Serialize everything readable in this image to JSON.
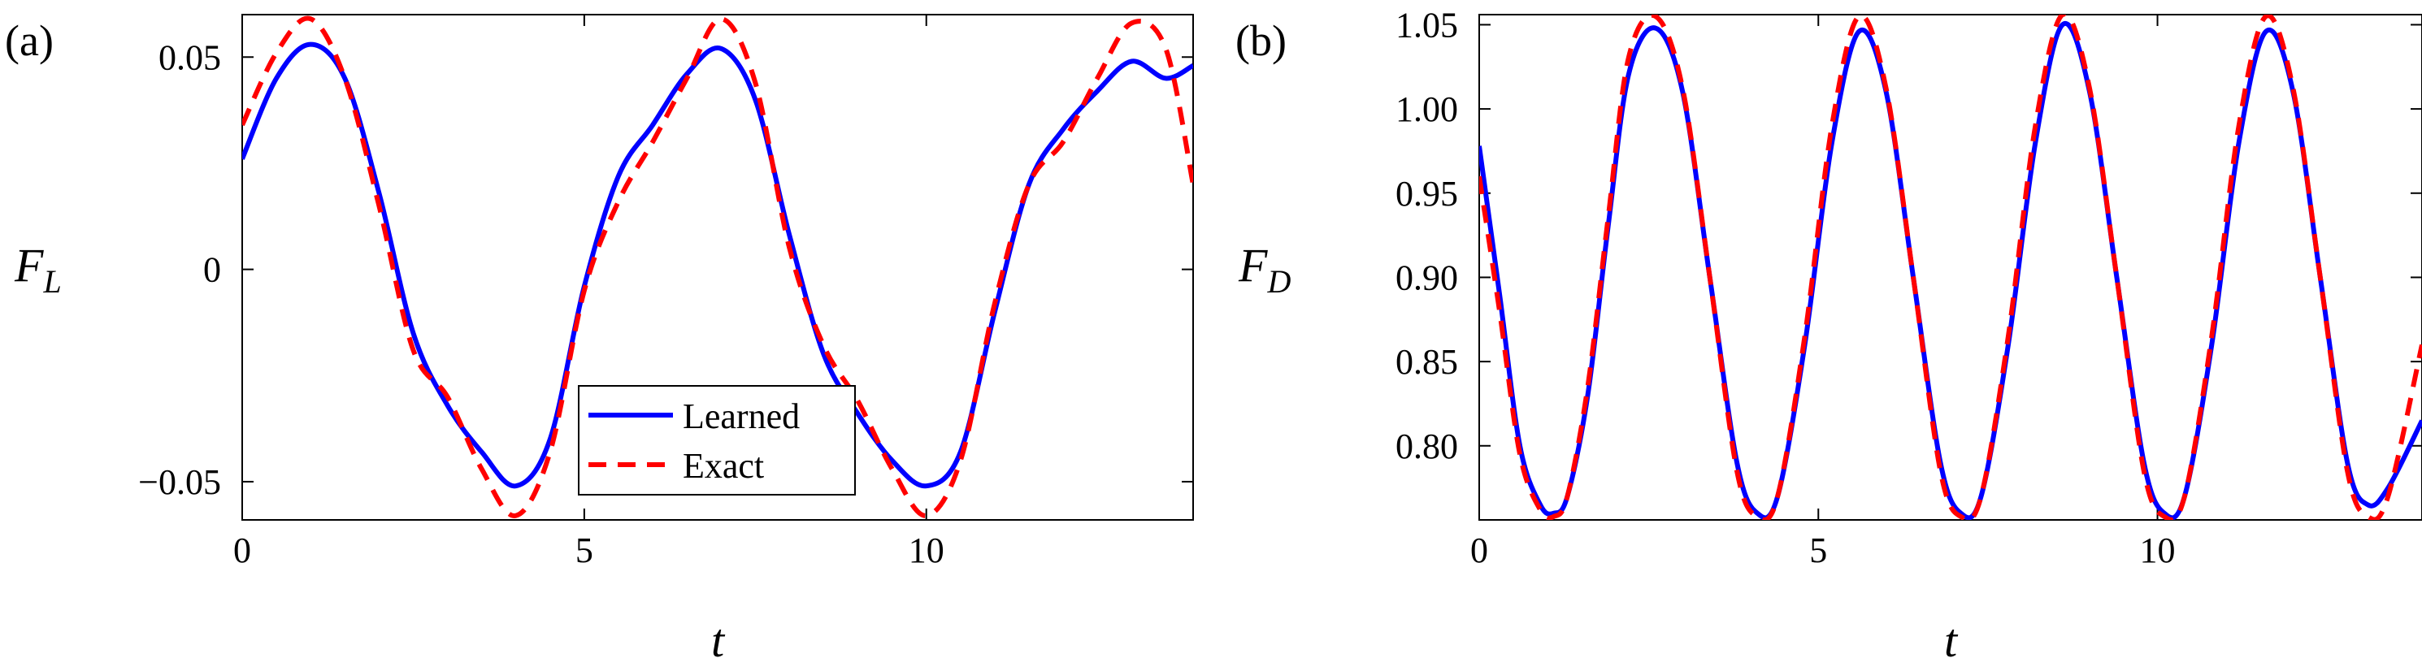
{
  "chart_data": [
    {
      "type": "line",
      "panel_label": "(a)",
      "xlabel": "t",
      "ylabel": "F",
      "ylabel_sub": "L",
      "xlim": [
        0,
        13.9
      ],
      "ylim": [
        -0.059,
        0.06
      ],
      "xticks": [
        0,
        5,
        10
      ],
      "xtick_labels": [
        "0",
        "5",
        "10"
      ],
      "yticks": [
        -0.05,
        0,
        0.05
      ],
      "ytick_labels": [
        "−0.05",
        "0",
        "0.05"
      ],
      "legend": {
        "position": "bottom-center",
        "entries": [
          {
            "label": "Learned",
            "color": "#0000ff",
            "style": "solid"
          },
          {
            "label": "Exact",
            "color": "#ff0000",
            "style": "dashed"
          }
        ]
      },
      "series": [
        {
          "name": "Learned",
          "color": "#0000ff",
          "style": "solid",
          "x": [
            0,
            0.5,
            1.0,
            1.5,
            2.0,
            2.5,
            3.0,
            3.5,
            4.0,
            4.5,
            5.0,
            5.5,
            6.0,
            6.5,
            7.0,
            7.5,
            8.0,
            8.5,
            9.0,
            9.5,
            10.0,
            10.5,
            11.0,
            11.5,
            12.0,
            12.5,
            13.0,
            13.5,
            13.9
          ],
          "y": [
            0.026,
            0.045,
            0.053,
            0.045,
            0.018,
            -0.015,
            -0.032,
            -0.043,
            -0.051,
            -0.04,
            -0.004,
            0.022,
            0.034,
            0.046,
            0.052,
            0.04,
            0.008,
            -0.02,
            -0.034,
            -0.045,
            -0.051,
            -0.043,
            -0.01,
            0.02,
            0.033,
            0.042,
            0.049,
            0.045,
            0.048
          ]
        },
        {
          "name": "Exact",
          "color": "#ff0000",
          "style": "dashed",
          "x": [
            0,
            0.5,
            1.0,
            1.5,
            2.0,
            2.5,
            3.0,
            3.5,
            4.0,
            4.5,
            5.0,
            5.5,
            6.0,
            6.5,
            7.0,
            7.5,
            8.0,
            8.5,
            9.0,
            9.5,
            10.0,
            10.5,
            11.0,
            11.5,
            12.0,
            12.5,
            13.0,
            13.5,
            13.9
          ],
          "y": [
            0.034,
            0.051,
            0.059,
            0.045,
            0.015,
            -0.019,
            -0.03,
            -0.047,
            -0.058,
            -0.043,
            -0.005,
            0.016,
            0.03,
            0.045,
            0.059,
            0.044,
            0.005,
            -0.018,
            -0.031,
            -0.047,
            -0.058,
            -0.045,
            -0.008,
            0.02,
            0.03,
            0.045,
            0.058,
            0.052,
            0.02
          ]
        }
      ]
    },
    {
      "type": "line",
      "panel_label": "(b)",
      "xlabel": "t",
      "ylabel": "F",
      "ylabel_sub": "D",
      "xlim": [
        0,
        13.9
      ],
      "ylim": [
        0.756,
        1.056
      ],
      "xticks": [
        0,
        5,
        10
      ],
      "xtick_labels": [
        "0",
        "5",
        "10"
      ],
      "yticks": [
        0.8,
        0.85,
        0.9,
        0.95,
        1.0,
        1.05
      ],
      "ytick_labels": [
        "0.80",
        "0.85",
        "0.90",
        "0.95",
        "1.00",
        "1.05"
      ],
      "series": [
        {
          "name": "Learned",
          "color": "#0000ff",
          "style": "solid",
          "x": [
            0,
            0.3,
            0.6,
            0.9,
            1.1,
            1.3,
            1.6,
            1.9,
            2.2,
            2.6,
            3.0,
            3.4,
            3.8,
            4.1,
            4.4,
            4.8,
            5.2,
            5.6,
            6.0,
            6.4,
            6.8,
            7.1,
            7.4,
            7.8,
            8.2,
            8.6,
            9.0,
            9.4,
            9.8,
            10.1,
            10.4,
            10.8,
            11.2,
            11.6,
            12.0,
            12.4,
            12.8,
            13.1,
            13.4,
            13.9
          ],
          "y": [
            0.978,
            0.89,
            0.8,
            0.765,
            0.76,
            0.77,
            0.83,
            0.93,
            1.02,
            1.048,
            1.01,
            0.9,
            0.79,
            0.76,
            0.77,
            0.86,
            0.98,
            1.046,
            1.01,
            0.9,
            0.79,
            0.76,
            0.77,
            0.86,
            0.98,
            1.05,
            1.01,
            0.9,
            0.79,
            0.76,
            0.77,
            0.86,
            0.98,
            1.046,
            1.01,
            0.9,
            0.79,
            0.765,
            0.775,
            0.815
          ]
        },
        {
          "name": "Exact",
          "color": "#ff0000",
          "style": "dashed",
          "x": [
            0,
            0.3,
            0.6,
            0.9,
            1.1,
            1.3,
            1.6,
            1.9,
            2.2,
            2.6,
            3.0,
            3.4,
            3.8,
            4.1,
            4.4,
            4.8,
            5.2,
            5.6,
            6.0,
            6.4,
            6.8,
            7.1,
            7.4,
            7.8,
            8.2,
            8.6,
            9.0,
            9.4,
            9.8,
            10.1,
            10.4,
            10.8,
            11.2,
            11.6,
            12.0,
            12.4,
            12.8,
            13.1,
            13.4,
            13.9
          ],
          "y": [
            0.96,
            0.88,
            0.795,
            0.762,
            0.758,
            0.77,
            0.835,
            0.935,
            1.03,
            1.055,
            1.012,
            0.9,
            0.785,
            0.758,
            0.77,
            0.865,
            0.99,
            1.055,
            1.012,
            0.9,
            0.785,
            0.758,
            0.77,
            0.865,
            0.99,
            1.056,
            1.012,
            0.9,
            0.785,
            0.758,
            0.77,
            0.865,
            0.99,
            1.055,
            1.012,
            0.9,
            0.785,
            0.758,
            0.77,
            0.86
          ]
        }
      ]
    }
  ]
}
